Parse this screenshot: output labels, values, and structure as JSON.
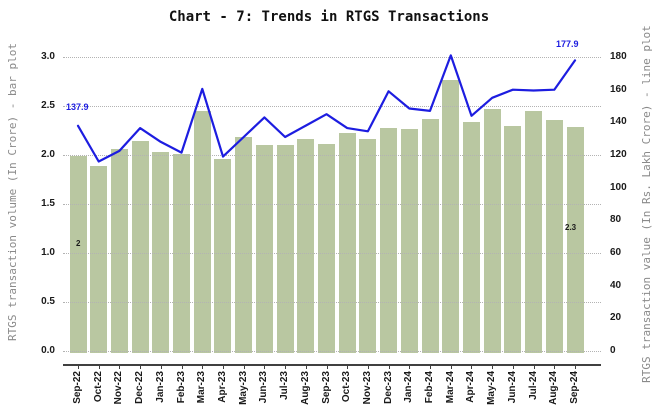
{
  "title": "Chart - 7: Trends in RTGS Transactions",
  "chart_data": {
    "type": "combo",
    "subtypes": [
      "bar",
      "line"
    ],
    "categories": [
      "Sep-22",
      "Oct-22",
      "Nov-22",
      "Dec-22",
      "Jan-23",
      "Feb-23",
      "Mar-23",
      "Apr-23",
      "May-23",
      "Jun-23",
      "Jul-23",
      "Aug-23",
      "Sep-23",
      "Oct-23",
      "Nov-23",
      "Dec-23",
      "Jan-24",
      "Feb-24",
      "Mar-24",
      "Apr-24",
      "May-24",
      "Jun-24",
      "Jul-24",
      "Aug-24",
      "Sep-24"
    ],
    "series": [
      {
        "name": "RTGS transaction volume (In Crore)",
        "type": "bar",
        "axis": "left",
        "color": "#b9c7a1",
        "values": [
          2.0,
          1.9,
          2.07,
          2.15,
          2.04,
          2.02,
          2.46,
          1.97,
          2.19,
          2.11,
          2.11,
          2.17,
          2.12,
          2.23,
          2.17,
          2.29,
          2.28,
          2.38,
          2.78,
          2.35,
          2.48,
          2.31,
          2.46,
          2.37,
          2.3
        ]
      },
      {
        "name": "RTGS transaction value (In Rs. Lakh Crore)",
        "type": "line",
        "axis": "right",
        "color": "#1d1de0",
        "values": [
          137.9,
          116,
          122.5,
          136.5,
          128,
          121.5,
          160.5,
          119,
          131,
          143,
          131,
          138,
          145,
          136.5,
          134.5,
          159,
          148.5,
          147,
          181,
          144,
          155,
          160,
          159.5,
          160,
          177.9
        ]
      }
    ],
    "ylabel_left": "RTGS transaction volume (In Crore) - bar plot",
    "ylabel_right": "RTGS transaction value (In Rs. Lakh Crore) - line plot",
    "ylim_left": [
      0,
      3.0
    ],
    "ylim_right": [
      0,
      180
    ],
    "yticks_left": [
      "0.0",
      "0.5",
      "1.0",
      "1.5",
      "2.0",
      "2.5",
      "3.0"
    ],
    "yticks_right": [
      "0",
      "20",
      "40",
      "60",
      "80",
      "100",
      "120",
      "140",
      "160",
      "180"
    ],
    "grid": "horizontal-dotted",
    "legend_position": "none",
    "annotations": [
      {
        "text": "137.9",
        "attach": "line-first",
        "color": "#1d1de0"
      },
      {
        "text": "177.9",
        "attach": "line-last",
        "color": "#1d1de0"
      },
      {
        "text": "2",
        "attach": "bar-first",
        "color": "#1a1a1a"
      },
      {
        "text": "2.3",
        "attach": "bar-last",
        "color": "#1a1a1a"
      }
    ]
  },
  "colors": {
    "bar": "#b9c7a1",
    "line": "#1d1de0",
    "grid": "#b3b3b3",
    "spine": "#404040",
    "tick_text": "#1a1a1a",
    "axis_label_text": "#8a8a8a",
    "background": "#ffffff"
  }
}
